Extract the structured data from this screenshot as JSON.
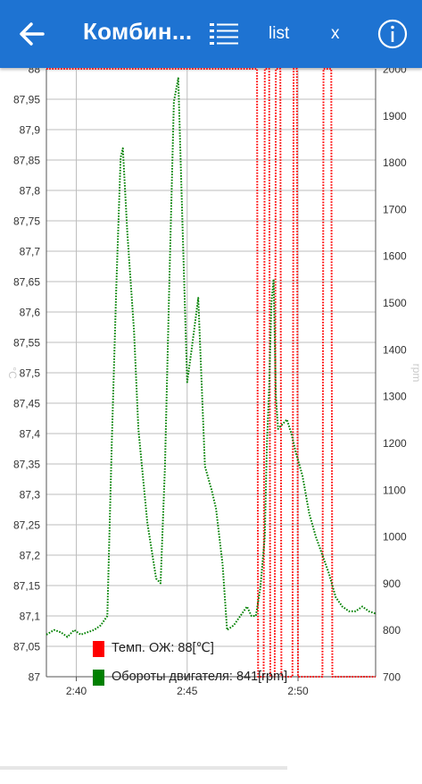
{
  "header": {
    "title": "Комбин...",
    "list_label": "list",
    "close_label": "x",
    "back_icon": "arrow-left-icon",
    "list_icon": "list-icon",
    "info_icon": "info-icon",
    "bar_color": "#1e73d2"
  },
  "legend": [
    {
      "label": "Темп. ОЖ: 88[℃]",
      "color": "#ff0000"
    },
    {
      "label": "Обороты двигателя: 841[rpm]",
      "color": "#008000"
    }
  ],
  "chart_data": {
    "type": "line",
    "x_ticks": [
      "2:40",
      "2:45",
      "2:50"
    ],
    "x_range_min": [
      38.65,
      53.5
    ],
    "y_left": {
      "label": "°C",
      "range": [
        87,
        88
      ],
      "ticks": [
        "87",
        "87,05",
        "87,1",
        "87,15",
        "87,2",
        "87,25",
        "87,3",
        "87,35",
        "87,4",
        "87,45",
        "87,5",
        "87,55",
        "87,6",
        "87,65",
        "87,7",
        "87,75",
        "87,8",
        "87,85",
        "87,9",
        "87,95",
        "88"
      ]
    },
    "y_right": {
      "label": "rpm",
      "range": [
        700,
        2000
      ],
      "ticks": [
        "700",
        "800",
        "900",
        "1000",
        "1100",
        "1200",
        "1300",
        "1400",
        "1500",
        "1600",
        "1700",
        "1800",
        "1900",
        "2000"
      ]
    },
    "grid": true,
    "series": [
      {
        "name": "Темп. ОЖ: 88[℃]",
        "color": "#ff0000",
        "axis": "left",
        "x": [
          38.65,
          48.15,
          48.2,
          48.45,
          48.5,
          48.7,
          48.75,
          48.95,
          49.0,
          49.2,
          49.25,
          49.75,
          49.8,
          49.95,
          50.0,
          51.1,
          51.15,
          51.5,
          51.55,
          53.5
        ],
        "values": [
          88,
          88,
          87,
          87,
          88,
          88,
          87,
          87,
          88,
          88,
          87,
          87,
          88,
          88,
          87,
          87,
          88,
          88,
          87,
          87
        ]
      },
      {
        "name": "Обороты двигателя: 841[rpm]",
        "color": "#008000",
        "axis": "right",
        "x": [
          38.65,
          39.0,
          39.3,
          39.6,
          39.9,
          40.2,
          40.5,
          40.8,
          41.1,
          41.4,
          41.6,
          41.8,
          42.0,
          42.1,
          42.3,
          42.6,
          42.8,
          43.2,
          43.6,
          43.8,
          44.0,
          44.2,
          44.4,
          44.6,
          44.8,
          45.0,
          45.2,
          45.5,
          45.8,
          46.1,
          46.3,
          46.6,
          46.8,
          47.1,
          47.4,
          47.7,
          47.9,
          48.1,
          48.3,
          48.5,
          48.6,
          48.7,
          48.8,
          48.9,
          49.0,
          49.1,
          49.3,
          49.5,
          49.7,
          49.9,
          50.2,
          50.5,
          50.8,
          51.1,
          51.4,
          51.7,
          52.0,
          52.3,
          52.6,
          52.9,
          53.2,
          53.5
        ],
        "values": [
          790,
          800,
          795,
          785,
          800,
          790,
          795,
          800,
          810,
          830,
          1200,
          1530,
          1810,
          1830,
          1650,
          1440,
          1230,
          1030,
          910,
          900,
          1150,
          1550,
          1930,
          1980,
          1650,
          1330,
          1400,
          1510,
          1150,
          1100,
          1060,
          940,
          800,
          810,
          830,
          850,
          830,
          830,
          890,
          1000,
          1200,
          1320,
          1500,
          1550,
          1300,
          1230,
          1240,
          1250,
          1220,
          1180,
          1130,
          1050,
          1000,
          960,
          920,
          870,
          850,
          840,
          840,
          850,
          840,
          835
        ]
      }
    ]
  }
}
